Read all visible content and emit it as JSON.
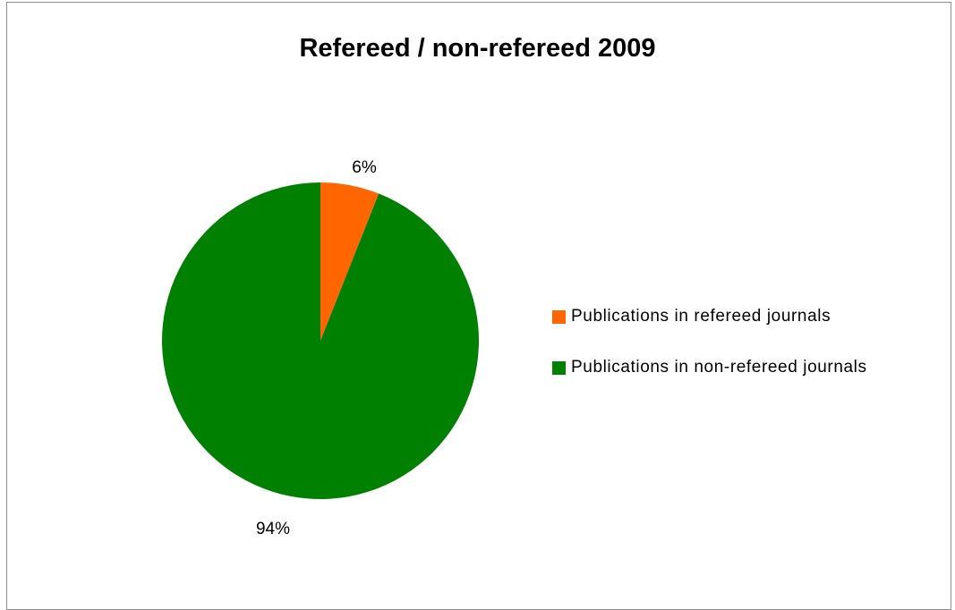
{
  "chart_data": {
    "type": "pie",
    "title": "Refereed / non-refereed 2009",
    "slices": [
      {
        "name": "Publications in refereed journals",
        "value": 6,
        "label": "6%",
        "color": "#ff6600"
      },
      {
        "name": "Publications in non-refereed journals",
        "value": 94,
        "label": "94%",
        "color": "#008000"
      }
    ],
    "legend_position": "right"
  }
}
